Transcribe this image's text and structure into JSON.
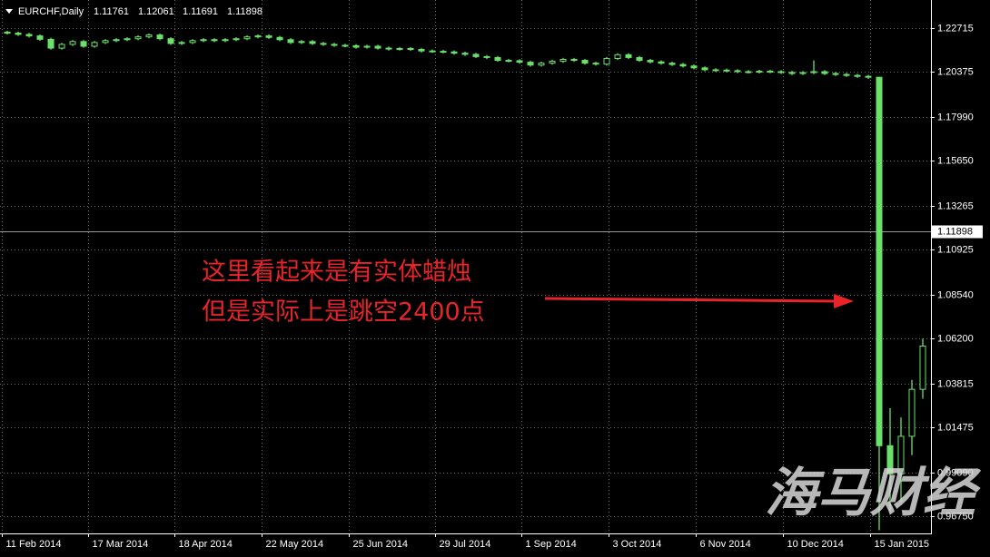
{
  "chart_data": {
    "type": "candlestick",
    "symbol": "EURCHF,Daily",
    "header_ohlc": [
      1.11761,
      1.12061,
      1.11691,
      1.11898
    ],
    "color": "#6be06b",
    "grid": true,
    "xlim": [
      -0.67,
      84.75
    ],
    "xticks": [
      {
        "value": -0.5,
        "label": "11 Feb 2014"
      },
      {
        "value": 7.4,
        "label": "17 Mar 2014"
      },
      {
        "value": 15.3,
        "label": "18 Apr 2014"
      },
      {
        "value": 23.3,
        "label": "22 May 2014"
      },
      {
        "value": 31.3,
        "label": "25 Jun 2014"
      },
      {
        "value": 39.25,
        "label": "29 Jul 2014"
      },
      {
        "value": 47.2,
        "label": "1 Sep 2014"
      },
      {
        "value": 55.2,
        "label": "3 Oct 2014"
      },
      {
        "value": 63.2,
        "label": "6 Nov 2014"
      },
      {
        "value": 71.2,
        "label": "10 Dec 2014"
      },
      {
        "value": 79.2,
        "label": "15 Jan 2015"
      }
    ],
    "ylim": [
      0.95833,
      1.24211
    ],
    "yticks": [
      1.22715,
      1.20375,
      {
        "value": 1.1799,
        "label": "1.17990"
      },
      {
        "value": 1.1565,
        "label": "1.15650"
      },
      1.13265,
      1.10925,
      {
        "value": 1.0854,
        "label": "1.08540"
      },
      {
        "value": 1.062,
        "label": "1.06200"
      },
      1.03815,
      1.01475,
      {
        "value": 0.9909,
        "label": "0.99090"
      },
      {
        "value": 0.9675,
        "label": "0.96750"
      }
    ],
    "open": [
      1.225,
      1.2245,
      1.2238,
      1.223,
      1.2212,
      1.2165,
      1.2185,
      1.22,
      1.2175,
      1.2195,
      1.2205,
      1.221,
      1.2215,
      1.2225,
      1.2235,
      1.2215,
      1.219,
      1.2195,
      1.2205,
      1.221,
      1.2205,
      1.221,
      1.2215,
      1.2225,
      1.223,
      1.2222,
      1.221,
      1.2195,
      1.22,
      1.219,
      1.2185,
      1.218,
      1.2178,
      1.217,
      1.2175,
      1.2165,
      1.216,
      1.2163,
      1.2158,
      1.215,
      1.2148,
      1.2145,
      1.2138,
      1.2132,
      1.212,
      1.2115,
      1.21,
      1.2098,
      1.209,
      1.2075,
      1.2085,
      1.2095,
      1.2105,
      1.21,
      1.2085,
      1.208,
      1.211,
      1.213,
      1.2115,
      1.21,
      1.2092,
      1.2085,
      1.2078,
      1.207,
      1.206,
      1.205,
      1.2048,
      1.2045,
      1.204,
      1.2038,
      1.2042,
      1.204,
      1.2036,
      1.203,
      1.2035,
      1.204,
      1.203,
      1.2025,
      1.202,
      1.2015,
      1.201,
      1.005,
      0.99,
      1.01,
      1.035
    ],
    "high": [
      1.2258,
      1.2253,
      1.2246,
      1.2238,
      1.222,
      1.2193,
      1.2208,
      1.2208,
      1.2203,
      1.2213,
      1.2218,
      1.2223,
      1.2233,
      1.2243,
      1.2243,
      1.2223,
      1.2203,
      1.2213,
      1.2218,
      1.2218,
      1.2218,
      1.2223,
      1.2233,
      1.2238,
      1.2238,
      1.223,
      1.2218,
      1.2208,
      1.2208,
      1.2198,
      1.2193,
      1.2188,
      1.2186,
      1.2183,
      1.2183,
      1.2173,
      1.2171,
      1.2171,
      1.2166,
      1.2158,
      1.2156,
      1.2153,
      1.2146,
      1.214,
      1.2128,
      1.2123,
      1.2108,
      1.2106,
      1.2098,
      1.2093,
      1.2103,
      1.2113,
      1.2113,
      1.2108,
      1.2093,
      1.2118,
      1.2138,
      1.2138,
      1.2123,
      1.2108,
      1.21,
      1.2093,
      1.2086,
      1.2078,
      1.2068,
      1.2058,
      1.2056,
      1.2053,
      1.2048,
      1.205,
      1.205,
      1.2048,
      1.2044,
      1.2043,
      1.21,
      1.2048,
      1.2038,
      1.2033,
      1.2028,
      1.2023,
      1.2012,
      1.025,
      1.02,
      1.04,
      1.062
    ],
    "low": [
      1.2237,
      1.223,
      1.2222,
      1.2204,
      1.2157,
      1.2157,
      1.2177,
      1.2167,
      1.2167,
      1.2187,
      1.2197,
      1.2202,
      1.2207,
      1.2217,
      1.2207,
      1.2182,
      1.2182,
      1.2187,
      1.2197,
      1.2197,
      1.2197,
      1.2202,
      1.2207,
      1.2217,
      1.2214,
      1.2202,
      1.2187,
      1.2187,
      1.2182,
      1.2177,
      1.2172,
      1.217,
      1.2162,
      1.2162,
      1.2157,
      1.2152,
      1.2152,
      1.215,
      1.2142,
      1.214,
      1.2137,
      1.213,
      1.2124,
      1.2112,
      1.2107,
      1.2092,
      1.209,
      1.2082,
      1.2067,
      1.2067,
      1.2077,
      1.2087,
      1.2092,
      1.2077,
      1.2072,
      1.2072,
      1.2102,
      1.2107,
      1.2092,
      1.2084,
      1.2077,
      1.207,
      1.2062,
      1.2052,
      1.2042,
      1.204,
      1.2037,
      1.2032,
      1.203,
      1.203,
      1.2032,
      1.2028,
      1.2022,
      1.2022,
      1.2027,
      1.2022,
      1.2017,
      1.2012,
      1.2007,
      1.2002,
      0.96,
      0.97,
      0.975,
      1.0,
      1.03
    ],
    "close": [
      1.2245,
      1.2238,
      1.223,
      1.2212,
      1.2165,
      1.2185,
      1.22,
      1.2175,
      1.2195,
      1.2205,
      1.221,
      1.2215,
      1.2225,
      1.2235,
      1.2215,
      1.219,
      1.2195,
      1.2205,
      1.221,
      1.2205,
      1.221,
      1.2215,
      1.2225,
      1.223,
      1.2222,
      1.221,
      1.2195,
      1.22,
      1.219,
      1.2185,
      1.218,
      1.2178,
      1.217,
      1.2175,
      1.2165,
      1.216,
      1.2163,
      1.2158,
      1.215,
      1.2148,
      1.2145,
      1.2138,
      1.2132,
      1.212,
      1.2115,
      1.21,
      1.2098,
      1.209,
      1.2075,
      1.2085,
      1.2095,
      1.2105,
      1.21,
      1.2085,
      1.208,
      1.211,
      1.213,
      1.2115,
      1.21,
      1.2092,
      1.2085,
      1.2078,
      1.207,
      1.206,
      1.205,
      1.2048,
      1.2045,
      1.204,
      1.2038,
      1.2042,
      1.204,
      1.2036,
      1.203,
      1.2035,
      1.204,
      1.203,
      1.2025,
      1.202,
      1.2015,
      1.201,
      1.005,
      0.99,
      1.01,
      1.035,
      1.058
    ],
    "annotations": [
      "这里看起来是有实体蜡烛",
      "但是实际上是跳空2400点"
    ],
    "watermark": "海马财经"
  }
}
